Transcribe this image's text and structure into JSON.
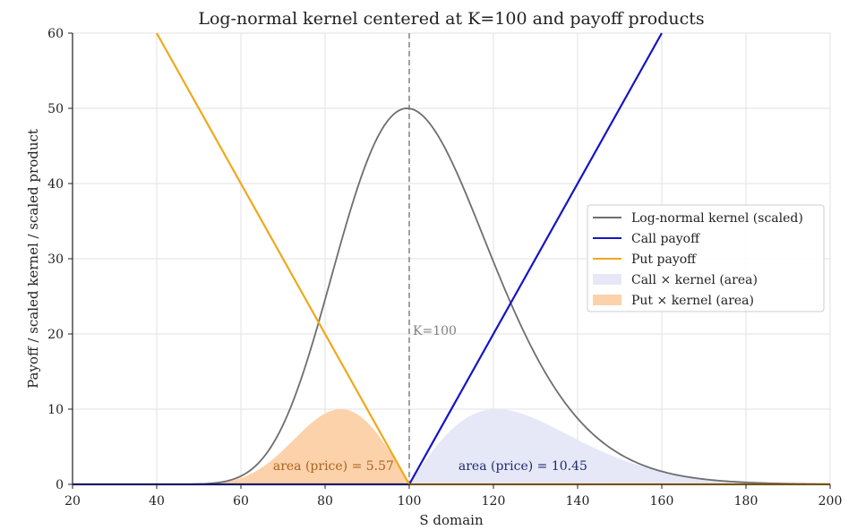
{
  "chart_data": {
    "type": "line",
    "title": "Log-normal kernel centered at K=100 and payoff products",
    "xlabel": "S domain",
    "ylabel": "Payoff / scaled kernel / scaled product",
    "xlim": [
      20,
      200
    ],
    "ylim": [
      0,
      60
    ],
    "xticks": [
      20,
      40,
      60,
      80,
      100,
      120,
      140,
      160,
      180,
      200
    ],
    "yticks": [
      0,
      10,
      20,
      30,
      40,
      50,
      60
    ],
    "grid": true,
    "strike": 100,
    "strike_label": "K=100",
    "kernel": {
      "name": "Log-normal kernel (scaled)",
      "peak_x": 99.5,
      "peak_y": 50,
      "log_sigma": 0.183,
      "color": "#6e6e6e"
    },
    "call_payoff": {
      "name": "Call payoff",
      "color": "#1515c4",
      "points": [
        [
          20,
          0
        ],
        [
          100,
          0
        ],
        [
          160,
          60
        ]
      ]
    },
    "put_payoff": {
      "name": "Put payoff",
      "color": "#f0a81a",
      "points": [
        [
          40,
          60
        ],
        [
          100,
          0
        ],
        [
          200,
          0
        ]
      ]
    },
    "call_area": {
      "name": "Call × kernel (area)",
      "color": "#e6e8f8",
      "peak_y": 10,
      "annotation": "area (price) = 10.45",
      "annotation_x": 127,
      "annotation_y": 2.5,
      "annotation_color": "#1f2a6e"
    },
    "put_area": {
      "name": "Put × kernel (area)",
      "color": "#fcd2ab",
      "peak_y": 10,
      "annotation": "area (price) = 5.57",
      "annotation_x": 82,
      "annotation_y": 2.5,
      "annotation_color": "#a8641d"
    },
    "legend_location": "center-right",
    "legend": [
      {
        "label": "Log-normal kernel (scaled)",
        "kind": "line",
        "color": "#6e6e6e"
      },
      {
        "label": "Call payoff",
        "kind": "line",
        "color": "#1515c4"
      },
      {
        "label": "Put payoff",
        "kind": "line",
        "color": "#f0a81a"
      },
      {
        "label": "Call × kernel (area)",
        "kind": "patch",
        "color": "#e6e8f8"
      },
      {
        "label": "Put × kernel (area)",
        "kind": "patch",
        "color": "#fcd2ab"
      }
    ]
  }
}
